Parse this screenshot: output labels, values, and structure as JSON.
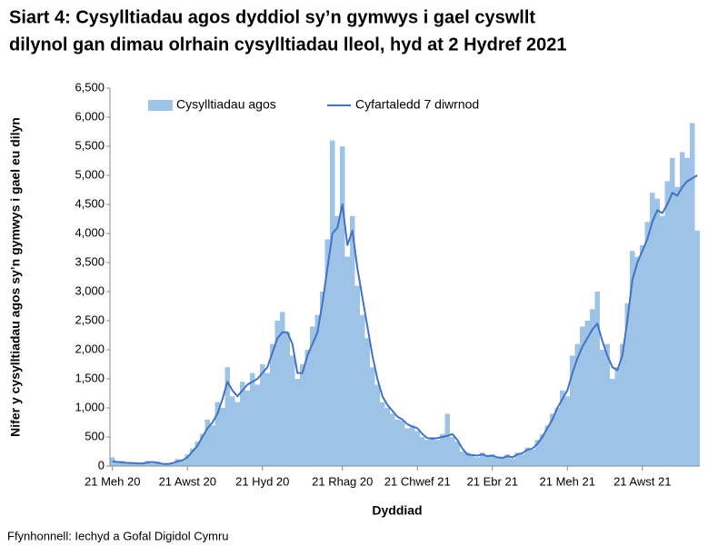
{
  "chart_data": {
    "type": "bar-line",
    "title": [
      "Siart 4: Cysylltiadau agos dyddiol sy’n gymwys i gael cyswllt",
      "dilynol gan dimau olrhain cysylltiadau lleol, hyd at 2 Hydref 2021"
    ],
    "x_label": "Dyddiad",
    "y_label": "Nifer y cysylltiadau agos sy’n gymwys i gael eu dilyn",
    "source": "Ffynhonnell: Iechyd a Gofal Digidol Cymru",
    "legend": "top",
    "categories": [
      "21 Meh 20",
      null,
      null,
      null,
      null,
      null,
      null,
      null,
      null,
      null,
      null,
      null,
      null,
      null,
      null,
      "21 Awst 20",
      null,
      null,
      null,
      null,
      null,
      null,
      null,
      null,
      null,
      null,
      null,
      null,
      null,
      null,
      "21 Hyd 20",
      null,
      null,
      null,
      null,
      null,
      null,
      null,
      null,
      null,
      null,
      null,
      null,
      null,
      null,
      null,
      "21 Rhag 20",
      null,
      null,
      null,
      null,
      null,
      null,
      null,
      null,
      null,
      null,
      null,
      null,
      null,
      null,
      "21 Chwef 21",
      null,
      null,
      null,
      null,
      null,
      null,
      null,
      null,
      null,
      null,
      null,
      null,
      null,
      null,
      "21 Ebr 21",
      null,
      null,
      null,
      null,
      null,
      null,
      null,
      null,
      null,
      null,
      null,
      null,
      null,
      null,
      "21 Meh 21",
      null,
      null,
      null,
      null,
      null,
      null,
      null,
      null,
      null,
      null,
      null,
      null,
      null,
      null,
      "21 Awst 21",
      null,
      null,
      null,
      null,
      null,
      null,
      null,
      null,
      null,
      null,
      null
    ],
    "series": [
      {
        "name": "Cysylltiadau agos",
        "kind": "bar",
        "color": "#9dc3e6",
        "values": [
          150,
          60,
          90,
          40,
          70,
          30,
          60,
          90,
          50,
          80,
          30,
          50,
          40,
          120,
          90,
          200,
          300,
          420,
          550,
          800,
          700,
          1100,
          1000,
          1700,
          1200,
          1100,
          1450,
          1300,
          1600,
          1400,
          1750,
          1600,
          2100,
          2500,
          2650,
          2300,
          1900,
          1500,
          1750,
          2000,
          2400,
          2600,
          3000,
          3900,
          5600,
          4300,
          5500,
          3600,
          4300,
          3100,
          2600,
          2200,
          1700,
          1400,
          1100,
          1000,
          900,
          800,
          780,
          650,
          700,
          600,
          500,
          450,
          500,
          450,
          550,
          900,
          500,
          420,
          250,
          230,
          200,
          150,
          230,
          160,
          200,
          140,
          160,
          200,
          130,
          230,
          200,
          320,
          280,
          450,
          550,
          700,
          900,
          1000,
          1300,
          1200,
          1900,
          2100,
          2400,
          2500,
          2700,
          3000,
          2000,
          2100,
          1500,
          1700,
          2100,
          2800,
          3700,
          3600,
          3800,
          4200,
          4700,
          4600,
          4300,
          4900,
          5300,
          4800,
          5400,
          5300,
          5900,
          4050
        ]
      },
      {
        "name": "Cyfartaledd 7 diwrnod",
        "kind": "line",
        "color": "#4472c4",
        "values": [
          80,
          70,
          60,
          55,
          50,
          45,
          45,
          60,
          70,
          55,
          40,
          35,
          50,
          80,
          100,
          150,
          250,
          350,
          500,
          650,
          750,
          900,
          1150,
          1450,
          1300,
          1200,
          1300,
          1400,
          1450,
          1500,
          1600,
          1700,
          1950,
          2200,
          2300,
          2300,
          2100,
          1600,
          1600,
          1900,
          2100,
          2300,
          2800,
          3400,
          4000,
          4100,
          4500,
          3800,
          4050,
          3400,
          2900,
          2400,
          1900,
          1500,
          1200,
          1050,
          950,
          850,
          800,
          720,
          680,
          650,
          550,
          480,
          470,
          480,
          500,
          520,
          550,
          450,
          300,
          200,
          190,
          180,
          200,
          170,
          180,
          150,
          140,
          170,
          150,
          200,
          220,
          280,
          300,
          380,
          500,
          650,
          800,
          1000,
          1150,
          1300,
          1600,
          1850,
          2050,
          2200,
          2350,
          2450,
          2150,
          1900,
          1700,
          1650,
          1900,
          2500,
          3200,
          3500,
          3700,
          3900,
          4200,
          4400,
          4350,
          4500,
          4700,
          4650,
          4800,
          4900,
          4950,
          5000
        ]
      }
    ],
    "ylim": [
      0,
      6500
    ],
    "yticks": [
      0,
      500,
      {
        "value": 1000,
        "label": "1,000"
      },
      {
        "value": 1500,
        "label": "1,500"
      },
      {
        "value": 2000,
        "label": "2,000"
      },
      {
        "value": 2500,
        "label": "2,500"
      },
      {
        "value": 3000,
        "label": "3,000"
      },
      {
        "value": 3500,
        "label": "3,500"
      },
      {
        "value": 4000,
        "label": "4,000"
      },
      {
        "value": 4500,
        "label": "4,500"
      },
      {
        "value": 5000,
        "label": "5,000"
      },
      {
        "value": 5500,
        "label": "5,500"
      },
      {
        "value": 6000,
        "label": "6,000"
      },
      {
        "value": 6500,
        "label": "6,500"
      }
    ]
  }
}
